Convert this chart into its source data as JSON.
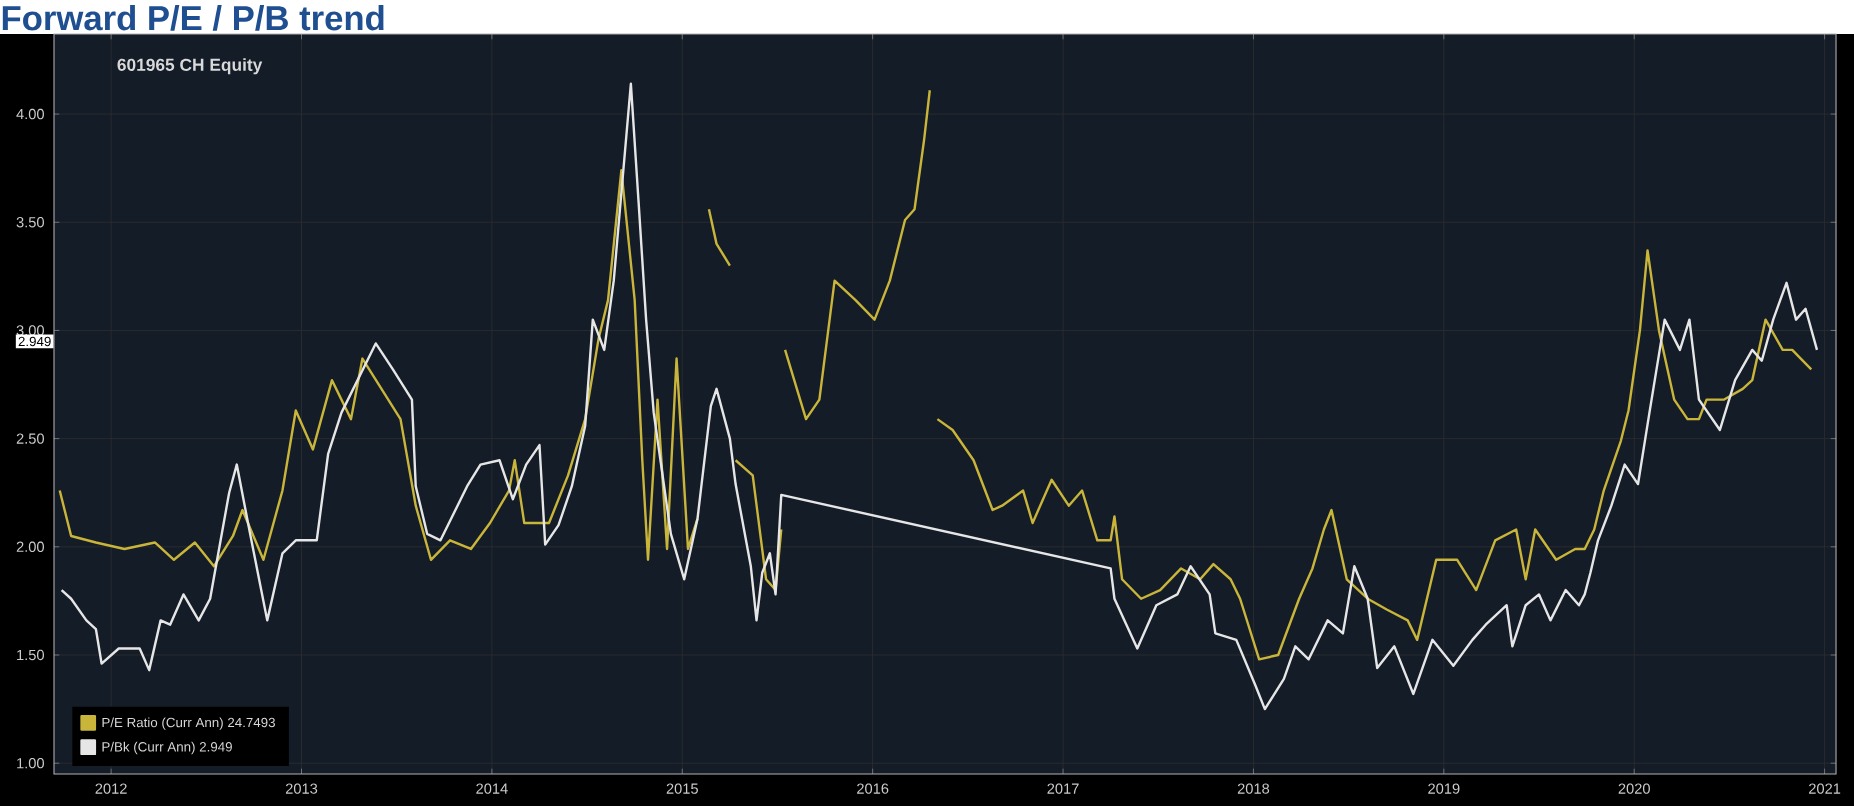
{
  "chart_data": {
    "type": "line",
    "title": "Forward P/E / P/B trend",
    "subtitle": "601965 CH Equity",
    "xlim": [
      2012.2,
      2021.56
    ],
    "ylim": [
      0.95,
      4.37
    ],
    "xticks": [
      {
        "value": 2012.5,
        "label": "2012"
      },
      {
        "value": 2013.5,
        "label": "2013"
      },
      {
        "value": 2014.5,
        "label": "2014"
      },
      {
        "value": 2015.5,
        "label": "2015"
      },
      {
        "value": 2016.5,
        "label": "2016"
      },
      {
        "value": 2017.5,
        "label": "2017"
      },
      {
        "value": 2018.5,
        "label": "2018"
      },
      {
        "value": 2019.5,
        "label": "2019"
      },
      {
        "value": 2020.5,
        "label": "2020"
      },
      {
        "value": 2021.5,
        "label": "2021"
      }
    ],
    "yticks": [
      {
        "value": 1,
        "label": "1.00"
      },
      {
        "value": 1.5,
        "label": "1.50"
      },
      {
        "value": 2,
        "label": "2.00"
      },
      {
        "value": 2.5,
        "label": "2.50"
      },
      {
        "value": 3,
        "label": "3.00"
      },
      {
        "value": 3.5,
        "label": "3.50"
      },
      {
        "value": 4,
        "label": "4.00"
      }
    ],
    "grid": true,
    "legend": "bottom left",
    "annotations": [
      {
        "text": "2.949",
        "y": 2.949
      }
    ],
    "series": [
      {
        "name": "P/E Ratio (Curr Ann) 24.7493",
        "color": "#c9b53a",
        "x": [
          2012.23,
          2012.29,
          2012.42,
          2012.57,
          2012.73,
          2012.83,
          2012.94,
          2013.04,
          2013.14,
          2013.19,
          2013.3,
          2013.4,
          2013.47,
          2013.56,
          2013.66,
          2013.76,
          2013.82,
          2013.92,
          2014.02,
          2014.1,
          2014.18,
          2014.28,
          2014.39,
          2014.49,
          2014.59,
          2014.62,
          2014.67,
          2014.8,
          2014.9,
          2014.99,
          2015.06,
          2015.11,
          2015.18,
          2015.25,
          2015.29,
          2015.32,
          2015.37,
          2015.42,
          2015.47,
          2015.53,
          2015.58,
          2015.61,
          2015.64,
          2015.68,
          2015.75,
          2015.765,
          2015.78,
          2015.87,
          2015.94,
          2015.99,
          2016.02,
          2016.03,
          2016.04,
          2016.15,
          2016.22,
          2016.3,
          2016.41,
          2016.51,
          2016.59,
          2016.67,
          2016.72,
          2016.77,
          2016.8,
          2016.82,
          2016.84,
          2016.92,
          2017.03,
          2017.13,
          2017.18,
          2017.29,
          2017.34,
          2017.44,
          2017.53,
          2017.6,
          2017.68,
          2017.75,
          2017.77,
          2017.81,
          2017.91,
          2018.01,
          2018.12,
          2018.22,
          2018.29,
          2018.38,
          2018.43,
          2018.53,
          2018.63,
          2018.74,
          2018.81,
          2018.87,
          2018.91,
          2018.99,
          2019.1,
          2019.2,
          2019.31,
          2019.36,
          2019.46,
          2019.57,
          2019.67,
          2019.77,
          2019.88,
          2019.93,
          2019.98,
          2020.09,
          2020.19,
          2020.24,
          2020.29,
          2020.34,
          2020.43,
          2020.47,
          2020.53,
          2020.57,
          2020.63,
          2020.71,
          2020.78,
          2020.84,
          2020.88,
          2020.97,
          2021.07,
          2021.12,
          2021.19,
          2021.28,
          2021.33,
          2021.43
        ],
        "values": [
          2.26,
          2.05,
          2.02,
          1.99,
          2.02,
          1.94,
          2.02,
          1.91,
          2.05,
          2.17,
          1.94,
          2.26,
          2.63,
          2.45,
          2.77,
          2.59,
          2.87,
          2.73,
          2.59,
          2.19,
          1.94,
          2.03,
          1.99,
          2.11,
          2.26,
          2.4,
          2.11,
          2.11,
          2.33,
          2.59,
          2.96,
          3.14,
          3.74,
          3.14,
          2.4,
          1.94,
          2.68,
          1.99,
          2.87,
          1.99,
          2.13,
          null,
          3.56,
          3.4,
          3.3,
          null,
          2.4,
          2.33,
          1.85,
          1.8,
          2.08,
          null,
          2.91,
          2.59,
          2.68,
          3.23,
          3.14,
          3.05,
          3.23,
          3.51,
          3.56,
          3.88,
          4.11,
          null,
          2.59,
          2.54,
          2.4,
          2.17,
          2.19,
          2.26,
          2.11,
          2.31,
          2.19,
          2.26,
          2.03,
          2.03,
          2.14,
          1.85,
          1.76,
          1.8,
          1.9,
          1.85,
          1.92,
          1.85,
          1.76,
          1.48,
          1.5,
          1.76,
          1.9,
          2.08,
          2.17,
          1.85,
          1.76,
          1.71,
          1.66,
          1.57,
          1.94,
          1.94,
          1.8,
          2.03,
          2.08,
          1.85,
          2.08,
          1.94,
          1.99,
          1.99,
          2.08,
          2.26,
          2.49,
          2.63,
          3.0,
          3.37,
          3.0,
          2.68,
          2.59,
          2.59,
          2.68,
          2.68,
          2.73,
          2.77,
          3.05,
          2.91,
          2.91,
          2.82
        ]
      },
      {
        "name": "P/Bk (Curr Ann) 2.949",
        "color": "#e6e6e6",
        "x": [
          2012.24,
          2012.29,
          2012.37,
          2012.42,
          2012.45,
          2012.54,
          2012.65,
          2012.7,
          2012.76,
          2012.81,
          2012.88,
          2012.96,
          2013.02,
          2013.12,
          2013.16,
          2013.23,
          2013.32,
          2013.4,
          2013.47,
          2013.58,
          2013.64,
          2013.71,
          2013.89,
          2013.98,
          2014.08,
          2014.1,
          2014.16,
          2014.23,
          2014.37,
          2014.44,
          2014.54,
          2014.61,
          2014.68,
          2014.75,
          2014.78,
          2014.85,
          2014.92,
          2014.99,
          2015.03,
          2015.09,
          2015.14,
          2015.23,
          2015.27,
          2015.31,
          2015.35,
          2015.44,
          2015.51,
          2015.58,
          2015.65,
          2015.68,
          2015.75,
          2015.78,
          2015.86,
          2015.89,
          2015.92,
          2015.96,
          2015.99,
          2016.02,
          2017.75,
          2017.77,
          2017.89,
          2017.99,
          2018.1,
          2018.17,
          2018.27,
          2018.3,
          2018.41,
          2018.51,
          2018.56,
          2018.66,
          2018.72,
          2018.79,
          2018.89,
          2018.97,
          2019.03,
          2019.1,
          2019.15,
          2019.24,
          2019.34,
          2019.44,
          2019.55,
          2019.65,
          2019.72,
          2019.83,
          2019.86,
          2019.93,
          2020.0,
          2020.06,
          2020.14,
          2020.21,
          2020.24,
          2020.27,
          2020.31,
          2020.38,
          2020.45,
          2020.52,
          2020.58,
          2020.66,
          2020.74,
          2020.79,
          2020.84,
          2020.95,
          2021.03,
          2021.12,
          2021.17,
          2021.23,
          2021.3,
          2021.35,
          2021.4,
          2021.46
        ],
        "values": [
          1.8,
          1.76,
          1.66,
          1.62,
          1.46,
          1.53,
          1.53,
          1.43,
          1.66,
          1.64,
          1.78,
          1.66,
          1.76,
          2.25,
          2.38,
          2.06,
          1.66,
          1.97,
          2.03,
          2.03,
          2.43,
          2.62,
          2.94,
          2.82,
          2.68,
          2.28,
          2.06,
          2.03,
          2.28,
          2.38,
          2.4,
          2.22,
          2.38,
          2.47,
          2.01,
          2.1,
          2.28,
          2.56,
          3.05,
          2.91,
          3.23,
          4.14,
          3.6,
          3.05,
          2.62,
          2.06,
          1.85,
          2.13,
          2.65,
          2.73,
          2.5,
          2.29,
          1.91,
          1.66,
          1.88,
          1.97,
          1.78,
          2.24,
          1.9,
          1.76,
          1.53,
          1.73,
          1.78,
          1.91,
          1.78,
          1.6,
          1.57,
          1.36,
          1.25,
          1.39,
          1.54,
          1.48,
          1.66,
          1.6,
          1.91,
          1.76,
          1.44,
          1.54,
          1.32,
          1.57,
          1.45,
          1.57,
          1.64,
          1.73,
          1.54,
          1.73,
          1.78,
          1.66,
          1.8,
          1.73,
          1.78,
          1.88,
          2.03,
          2.19,
          2.38,
          2.29,
          2.62,
          3.05,
          2.91,
          3.05,
          2.68,
          2.54,
          2.77,
          2.91,
          2.86,
          3.05,
          3.22,
          3.05,
          3.1,
          2.91
        ]
      }
    ]
  }
}
